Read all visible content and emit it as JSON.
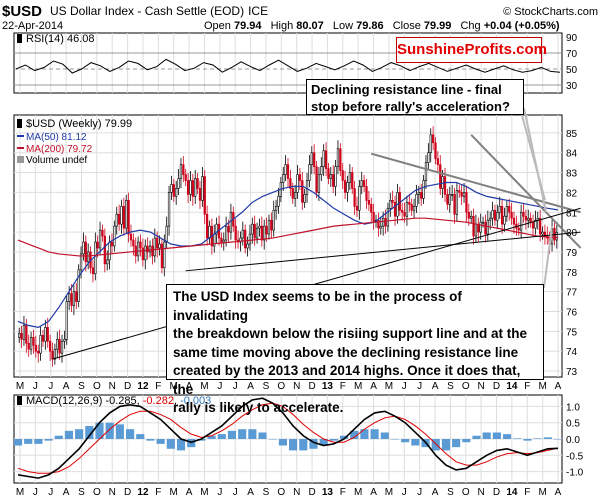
{
  "header": {
    "symbol": "$USD",
    "name": "US Dollar Index - Cash Settle (EOD)",
    "exchange": "ICE",
    "copyright": "© StockCharts.com",
    "date": "22-Apr-2014",
    "quote": {
      "open_label": "Open",
      "open": "79.94",
      "high_label": "High",
      "high": "80.07",
      "low_label": "Low",
      "low": "79.86",
      "close_label": "Close",
      "close": "79.99",
      "chg_label": "Chg",
      "chg": "+0.04 (+0.05%)"
    }
  },
  "brand": "SunshineProfits.com",
  "annotations": {
    "resistance_line_1": "Declining resistance line - final",
    "resistance_line_2": "stop before rally's acceleration?",
    "main_1": "The USD Index seems to be in the process of invalidating",
    "main_2": "the breakdown below the risiing support line and at the",
    "main_3": "same time moving above the declining resistance line",
    "main_4": "created by the 2013 and 2014 highs. Once it does that, the",
    "main_5": "rally is likely to accelerate."
  },
  "colors": {
    "price_up": "#000000",
    "price_down": "#d0021b",
    "ma50": "#1f3aa8",
    "ma200": "#c0122b",
    "rsi_line": "#000000",
    "macd_line": "#000000",
    "signal_line": "#e00000",
    "histogram": "#5b9bd5",
    "trend_lines": "#808080",
    "support_lines": "#000000",
    "brand_text": "#e30000"
  },
  "chart_data": [
    {
      "panel": "rsi",
      "type": "line",
      "legend": "RSI(14) 46.08",
      "y_ticks": [
        30,
        50,
        70,
        90
      ],
      "ylim": [
        20,
        95
      ],
      "reference_lines": [
        30,
        50,
        70
      ],
      "series": [
        {
          "name": "RSI(14)",
          "values": [
            50,
            55,
            48,
            52,
            60,
            56,
            45,
            50,
            58,
            54,
            47,
            52,
            60,
            57,
            49,
            53,
            62,
            56,
            48,
            51,
            58,
            55,
            46,
            52,
            59,
            53,
            48,
            55,
            61,
            54,
            47,
            51,
            57,
            53,
            49,
            54,
            60,
            55,
            47,
            52,
            58,
            54,
            48,
            53,
            57,
            52,
            47,
            51,
            55,
            50,
            46,
            50,
            54,
            49,
            46,
            48,
            52,
            47,
            46
          ]
        }
      ]
    },
    {
      "panel": "price",
      "type": "candlestick",
      "legend": [
        "$USD (Weekly) 79.99",
        "MA(50) 81.12",
        "MA(200) 79.72",
        "Volume undef"
      ],
      "x_ticks": [
        "M",
        "J",
        "J",
        "A",
        "S",
        "O",
        "N",
        "D",
        "12",
        "F",
        "M",
        "A",
        "M",
        "J",
        "J",
        "A",
        "S",
        "O",
        "N",
        "D",
        "13",
        "F",
        "M",
        "A",
        "M",
        "J",
        "J",
        "A",
        "S",
        "O",
        "N",
        "D",
        "14",
        "F",
        "M",
        "A"
      ],
      "y_ticks": [
        73,
        74,
        75,
        76,
        77,
        78,
        79,
        80,
        81,
        82,
        83,
        84,
        85
      ],
      "ylim": [
        72.7,
        85.9
      ],
      "closes": [
        74.9,
        74.6,
        75.3,
        74.4,
        74.1,
        74.7,
        74.3,
        74.0,
        73.9,
        74.8,
        74.5,
        75.2,
        74.5,
        74.0,
        73.6,
        74.1,
        74.6,
        73.9,
        74.5,
        74.6,
        76.5,
        76.9,
        76.3,
        77.0,
        76.5,
        78.1,
        78.9,
        79.5,
        78.5,
        79.0,
        78.2,
        77.9,
        79.5,
        79.2,
        80.1,
        79.8,
        78.4,
        78.6,
        79.5,
        79.3,
        80.3,
        80.9,
        80.4,
        81.3,
        80.2,
        81.6,
        79.9,
        79.6,
        79.3,
        78.8,
        79.5,
        79.2,
        78.6,
        79.3,
        79.0,
        79.3,
        78.8,
        79.7,
        79.2,
        79.4,
        78.2,
        79.5,
        80.3,
        82.0,
        82.4,
        81.8,
        82.2,
        82.7,
        83.4,
        82.9,
        82.6,
        81.9,
        82.6,
        81.8,
        82.7,
        82.2,
        81.6,
        82.8,
        80.9,
        79.7,
        80.3,
        79.3,
        79.9,
        80.4,
        79.7,
        79.5,
        79.6,
        80.3,
        80.0,
        81.0,
        80.3,
        79.6,
        79.5,
        79.7,
        80.1,
        79.2,
        79.4,
        79.9,
        80.4,
        79.7,
        80.2,
        80.3,
        79.6,
        80.3,
        79.9,
        80.6,
        80.1,
        81.1,
        81.3,
        81.8,
        82.5,
        82.9,
        83.4,
        82.7,
        82.2,
        81.7,
        82.0,
        82.9,
        82.6,
        81.5,
        81.9,
        82.6,
        83.4,
        84.0,
        83.3,
        82.0,
        82.9,
        83.3,
        84.1,
        83.2,
        82.7,
        82.9,
        82.3,
        83.3,
        84.2,
        83.1,
        82.6,
        82.0,
        82.5,
        83.0,
        82.2,
        81.3,
        81.1,
        82.3,
        82.6,
        82.3,
        81.6,
        81.4,
        81.0,
        80.5,
        80.6,
        80.2,
        80.3,
        80.7,
        80.3,
        81.2,
        81.6,
        81.5,
        80.8,
        82.0,
        81.1,
        81.0,
        80.8,
        81.5,
        81.4,
        81.1,
        81.3,
        81.9,
        82.0,
        81.7,
        82.6,
        83.5,
        84.0,
        84.9,
        84.5,
        83.7,
        83.4,
        82.2,
        82.8,
        81.9,
        81.4,
        81.9,
        81.9,
        80.9,
        82.1,
        82.0,
        81.8,
        82.0,
        81.0,
        80.7,
        80.8,
        79.8,
        80.4,
        80.0,
        80.5,
        80.5,
        79.9,
        80.6,
        80.7,
        81.1,
        80.6,
        81.0,
        81.3,
        80.4,
        80.8,
        81.3,
        81.0,
        80.7,
        80.4,
        80.2,
        80.1,
        81.0,
        80.8,
        80.6,
        80.7,
        80.5,
        80.2,
        80.6,
        80.7,
        79.9,
        80.0,
        79.8,
        79.7,
        79.4,
        80.2,
        79.6,
        79.99
      ],
      "series": [
        {
          "name": "MA(50)",
          "values": [
            75.5,
            75.3,
            75.2,
            75.5,
            76.2,
            77.0,
            77.8,
            78.5,
            79.0,
            79.5,
            79.8,
            80.0,
            80.1,
            80.0,
            79.7,
            79.4,
            79.3,
            79.3,
            79.4,
            79.8,
            80.2,
            80.6,
            81.0,
            81.5,
            81.8,
            82.0,
            82.2,
            82.3,
            82.3,
            82.0,
            81.6,
            81.2,
            80.9,
            80.6,
            80.4,
            80.5,
            80.9,
            81.3,
            81.7,
            82.1,
            82.3,
            82.4,
            82.5,
            82.5,
            82.3,
            82.0,
            81.8,
            81.7,
            81.6,
            81.5,
            81.4,
            81.3,
            81.2,
            81.12
          ]
        },
        {
          "name": "MA(200)",
          "values": [
            79.6,
            79.4,
            79.2,
            79.0,
            78.9,
            78.85,
            78.8,
            78.8,
            78.85,
            78.9,
            78.95,
            79.0,
            79.05,
            79.1,
            79.15,
            79.2,
            79.25,
            79.3,
            79.35,
            79.4,
            79.45,
            79.5,
            79.55,
            79.6,
            79.65,
            79.7,
            79.8,
            79.9,
            80.0,
            80.1,
            80.2,
            80.3,
            80.35,
            80.4,
            80.45,
            80.5,
            80.55,
            80.6,
            80.65,
            80.7,
            80.7,
            80.65,
            80.6,
            80.55,
            80.5,
            80.4,
            80.3,
            80.2,
            80.1,
            80.0,
            79.9,
            79.8,
            79.75,
            79.72
          ]
        }
      ],
      "trend_lines": [
        {
          "kind": "resistance",
          "from": [
            148,
            83.95
          ],
          "to": [
            236,
            81.0
          ]
        },
        {
          "kind": "declining",
          "from": [
            190,
            84.9
          ],
          "to": [
            236,
            79.2
          ]
        },
        {
          "kind": "support",
          "from": [
            14,
            73.6
          ],
          "to": [
            236,
            81.2
          ]
        },
        {
          "kind": "support",
          "from": [
            70,
            78.05
          ],
          "to": [
            236,
            80.0
          ]
        }
      ]
    },
    {
      "panel": "macd",
      "type": "line",
      "legend": {
        "label": "MACD(12,26,9)",
        "macd": "-0.285",
        "signal": "-0.282",
        "hist": "-0.003"
      },
      "y_ticks": [
        1.0,
        0.5,
        0.0,
        -0.5,
        -1.0
      ],
      "y_tick_labels": [
        "1.0",
        "0.5",
        "0.0",
        "-0.5",
        "-1.0"
      ],
      "ylim": [
        -1.35,
        1.35
      ],
      "series": [
        {
          "name": "MACD",
          "values": [
            -1.1,
            -1.15,
            -1.2,
            -1.1,
            -0.9,
            -0.6,
            -0.3,
            0.1,
            0.5,
            0.8,
            1.0,
            1.05,
            1.0,
            0.8,
            0.6,
            0.3,
            0.0,
            -0.1,
            0.0,
            0.2,
            0.4,
            0.7,
            1.0,
            1.2,
            1.25,
            1.1,
            0.8,
            0.4,
            0.1,
            -0.1,
            -0.2,
            -0.15,
            0.0,
            0.3,
            0.6,
            0.8,
            0.85,
            0.7,
            0.5,
            0.2,
            -0.1,
            -0.5,
            -0.8,
            -0.95,
            -0.9,
            -0.7,
            -0.5,
            -0.35,
            -0.3,
            -0.4,
            -0.5,
            -0.4,
            -0.3,
            -0.285
          ]
        },
        {
          "name": "Signal",
          "values": [
            -0.9,
            -1.0,
            -1.05,
            -1.05,
            -1.0,
            -0.85,
            -0.6,
            -0.3,
            0.0,
            0.3,
            0.55,
            0.75,
            0.85,
            0.85,
            0.75,
            0.6,
            0.35,
            0.15,
            0.05,
            0.1,
            0.25,
            0.45,
            0.7,
            0.9,
            1.05,
            1.1,
            1.0,
            0.75,
            0.45,
            0.2,
            0.0,
            -0.1,
            -0.1,
            0.05,
            0.3,
            0.5,
            0.65,
            0.7,
            0.6,
            0.4,
            0.15,
            -0.15,
            -0.45,
            -0.7,
            -0.8,
            -0.8,
            -0.7,
            -0.55,
            -0.45,
            -0.42,
            -0.45,
            -0.42,
            -0.35,
            -0.282
          ]
        }
      ]
    }
  ]
}
